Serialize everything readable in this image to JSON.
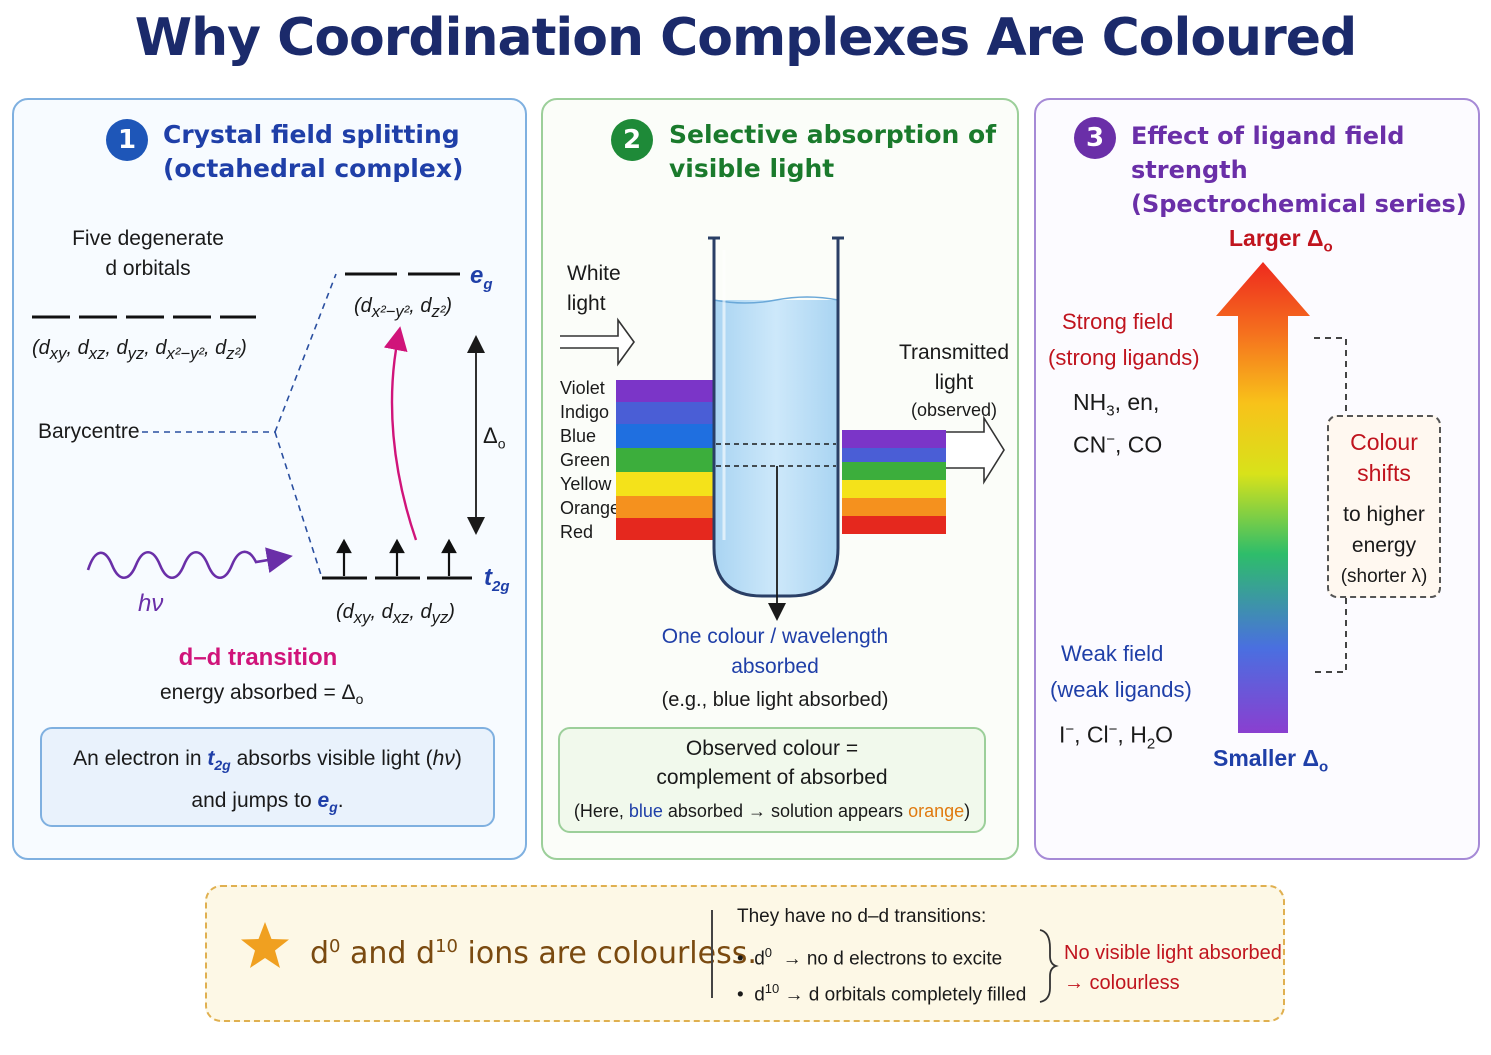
{
  "title": "Why Coordination Complexes Are Coloured",
  "colors": {
    "navy": "#1b2a6b",
    "blue": "#1f3fa8",
    "green": "#1a7a2c",
    "purple": "#6a2fa8",
    "red": "#c0141e",
    "magenta": "#d0147a",
    "orange": "#e07a10",
    "star": "#f0a020"
  },
  "panel1": {
    "number": "1",
    "title_line1": "Crystal field splitting",
    "title_line2": "(octahedral complex)",
    "degenerate_line1": "Five degenerate",
    "degenerate_line2": "d orbitals",
    "degenerate_orbitals": "(dxy, dxz, dyz, dx²−y², dz²)",
    "barycentre": "Barycentre",
    "eg_label": "eg",
    "eg_orbitals": "(dx²−y², dz²)",
    "t2g_label": "t2g",
    "t2g_orbitals": "(dxy, dxz, dyz)",
    "delta_label": "Δo",
    "photon_label": "hν",
    "transition_title": "d–d transition",
    "transition_energy": "energy absorbed = Δo",
    "note": "An electron in t2g absorbs visible light (hν) and jumps to eg."
  },
  "panel2": {
    "number": "2",
    "title_line1": "Selective absorption of",
    "title_line2": "visible light",
    "white_light": "White light",
    "spectrum": [
      "Violet",
      "Indigo",
      "Blue",
      "Green",
      "Yellow",
      "Orange",
      "Red"
    ],
    "spectrum_colors": [
      "#7b35c8",
      "#4a5ed6",
      "#1f6fe0",
      "#3cae3c",
      "#f4e21a",
      "#f5911e",
      "#e5281e"
    ],
    "transmitted_colors": [
      "#7b35c8",
      "#4a5ed6",
      "#3cae3c",
      "#f4e21a",
      "#f5911e",
      "#e5281e"
    ],
    "transmitted": "Transmitted",
    "transmitted_2": "light",
    "observed": "(observed)",
    "absorbed_1": "One colour / wavelength",
    "absorbed_2": "absorbed",
    "absorbed_example": "(e.g., blue light absorbed)",
    "box_line1": "Observed colour =",
    "box_line2": "complement of absorbed",
    "box_here": "(Here, ",
    "box_blue": "blue",
    "box_mid": " absorbed → solution appears ",
    "box_orange": "orange",
    "box_close": ")"
  },
  "panel3": {
    "number": "3",
    "title_line1": "Effect of ligand field strength",
    "title_line2": "(Spectrochemical series)",
    "larger": "Larger Δo",
    "smaller": "Smaller Δo",
    "strong_1": "Strong field",
    "strong_2": "(strong ligands)",
    "strong_ligands_1": "NH3, en,",
    "strong_ligands_2": "CN⁻, CO",
    "weak_1": "Weak field",
    "weak_2": "(weak ligands)",
    "weak_ligands": "I⁻, Cl⁻, H2O",
    "shift_1": "Colour",
    "shift_2": "shifts",
    "shift_3": "to higher",
    "shift_4": "energy",
    "shift_5": "(shorter λ)"
  },
  "bottom": {
    "main_text": "d0 and d10 ions are colourless.",
    "intro": "They have no d–d transitions:",
    "item1": "d0 → no d electrons to excite",
    "item2": "d10 → d orbitals completely filled",
    "result_1": "No visible light absorbed",
    "result_2": "→ colourless"
  }
}
